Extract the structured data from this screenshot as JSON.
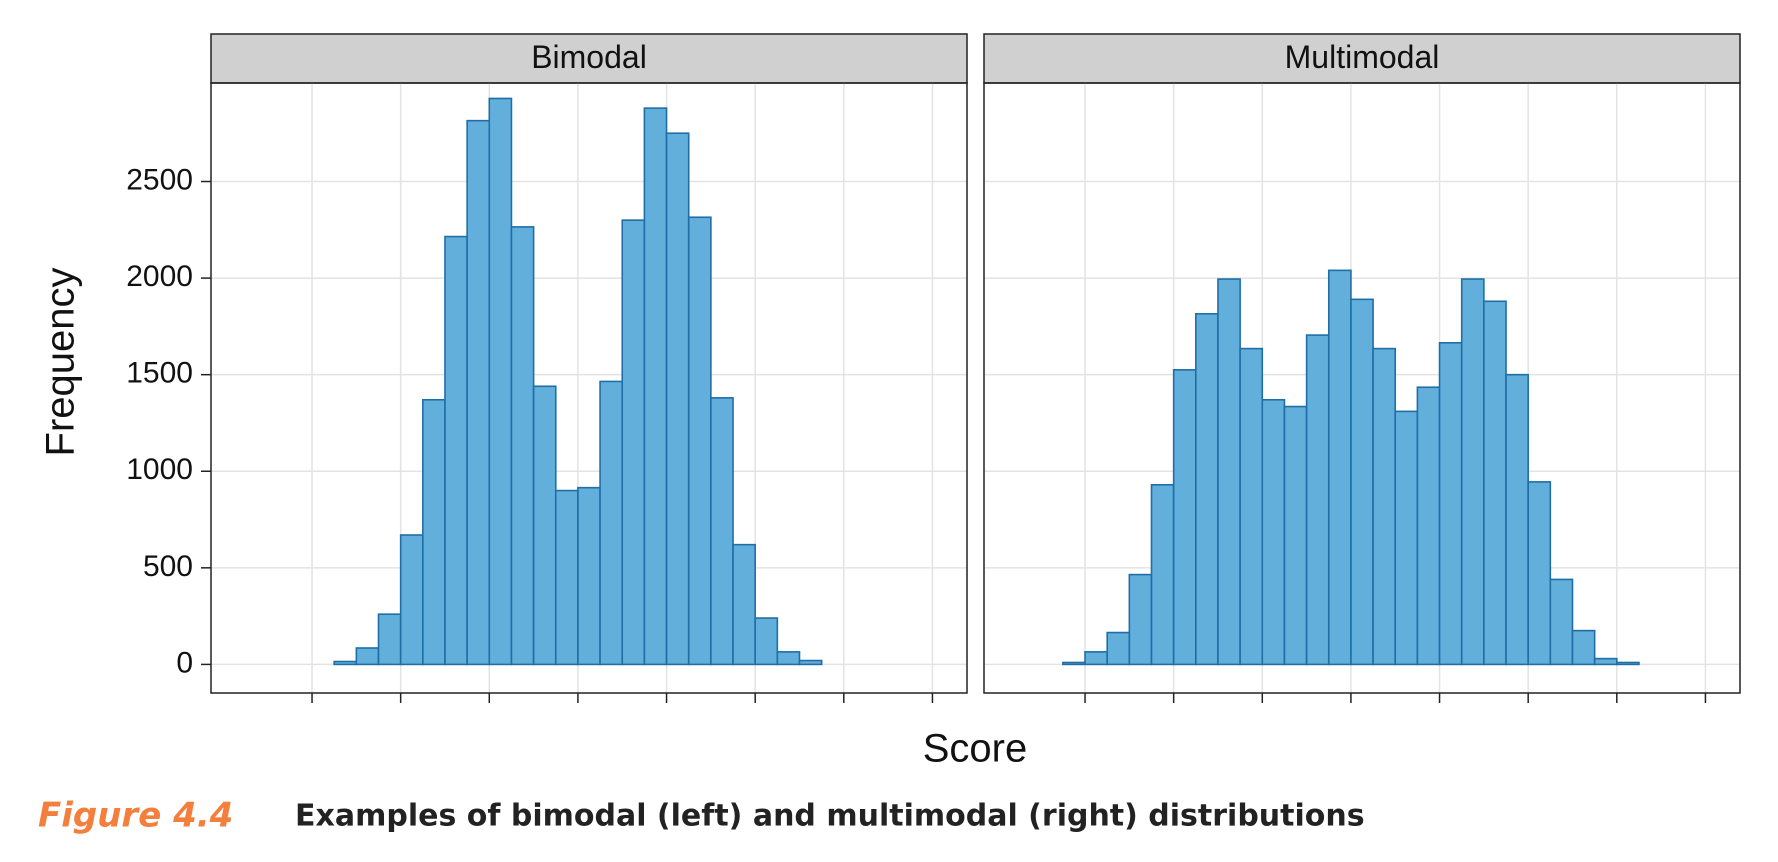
{
  "figure": {
    "xlabel": "Score",
    "ylabel": "Frequency",
    "caption_label": "Figure 4.4",
    "caption": "Examples of bimodal (left) and multimodal (right) distributions"
  },
  "chart_data": [
    {
      "type": "histogram",
      "title": "Bimodal",
      "color": "#62afdc",
      "edgecolor": "#1f6fa6",
      "grid": true,
      "bins": [
        -0.75,
        -0.5,
        -0.25,
        0,
        0.25,
        0.5,
        0.75,
        1,
        1.25,
        1.5,
        1.75,
        2,
        2.25,
        2.5,
        2.75,
        3,
        3.25,
        3.5,
        3.75,
        4,
        4.25,
        4.5,
        4.75,
        5,
        5.25,
        5.5,
        5.75,
        6,
        6.25,
        6.5,
        6.75,
        7
      ],
      "values": [
        0,
        0,
        0,
        0,
        15,
        85,
        260,
        670,
        1370,
        2215,
        2815,
        2930,
        2265,
        1440,
        900,
        915,
        1465,
        2300,
        2880,
        2750,
        2315,
        1380,
        620,
        240,
        65,
        20,
        0,
        0,
        0,
        0,
        0
      ],
      "xlim": [
        -1.14,
        7.39
      ],
      "xticks": [
        0,
        1,
        2,
        3,
        4,
        5,
        6,
        7
      ],
      "ylim": [
        -148,
        3010
      ],
      "yticks": [
        0,
        500,
        1000,
        1500,
        2000,
        2500
      ]
    },
    {
      "type": "histogram",
      "title": "Multimodal",
      "color": "#62afdc",
      "edgecolor": "#1f6fa6",
      "grid": true,
      "bins": [
        -0.75,
        -0.5,
        -0.25,
        0,
        0.25,
        0.5,
        0.75,
        1,
        1.25,
        1.5,
        1.75,
        2,
        2.25,
        2.5,
        2.75,
        3,
        3.25,
        3.5,
        3.75,
        4,
        4.25,
        4.5,
        4.75,
        5,
        5.25,
        5.5,
        5.75,
        6,
        6.25,
        6.5,
        6.75,
        7
      ],
      "values": [
        0,
        0,
        10,
        65,
        165,
        465,
        930,
        1525,
        1815,
        1995,
        1635,
        1370,
        1335,
        1705,
        2040,
        1890,
        1635,
        1310,
        1435,
        1665,
        1995,
        1880,
        1500,
        945,
        440,
        175,
        30,
        10,
        0,
        0,
        0
      ],
      "xlim": [
        -1.14,
        7.39
      ],
      "xticks": [
        0,
        1,
        2,
        3,
        4,
        5,
        6,
        7
      ],
      "ylim": [
        -148,
        3010
      ],
      "yticks": [
        0,
        500,
        1000,
        1500,
        2000,
        2500
      ]
    }
  ]
}
